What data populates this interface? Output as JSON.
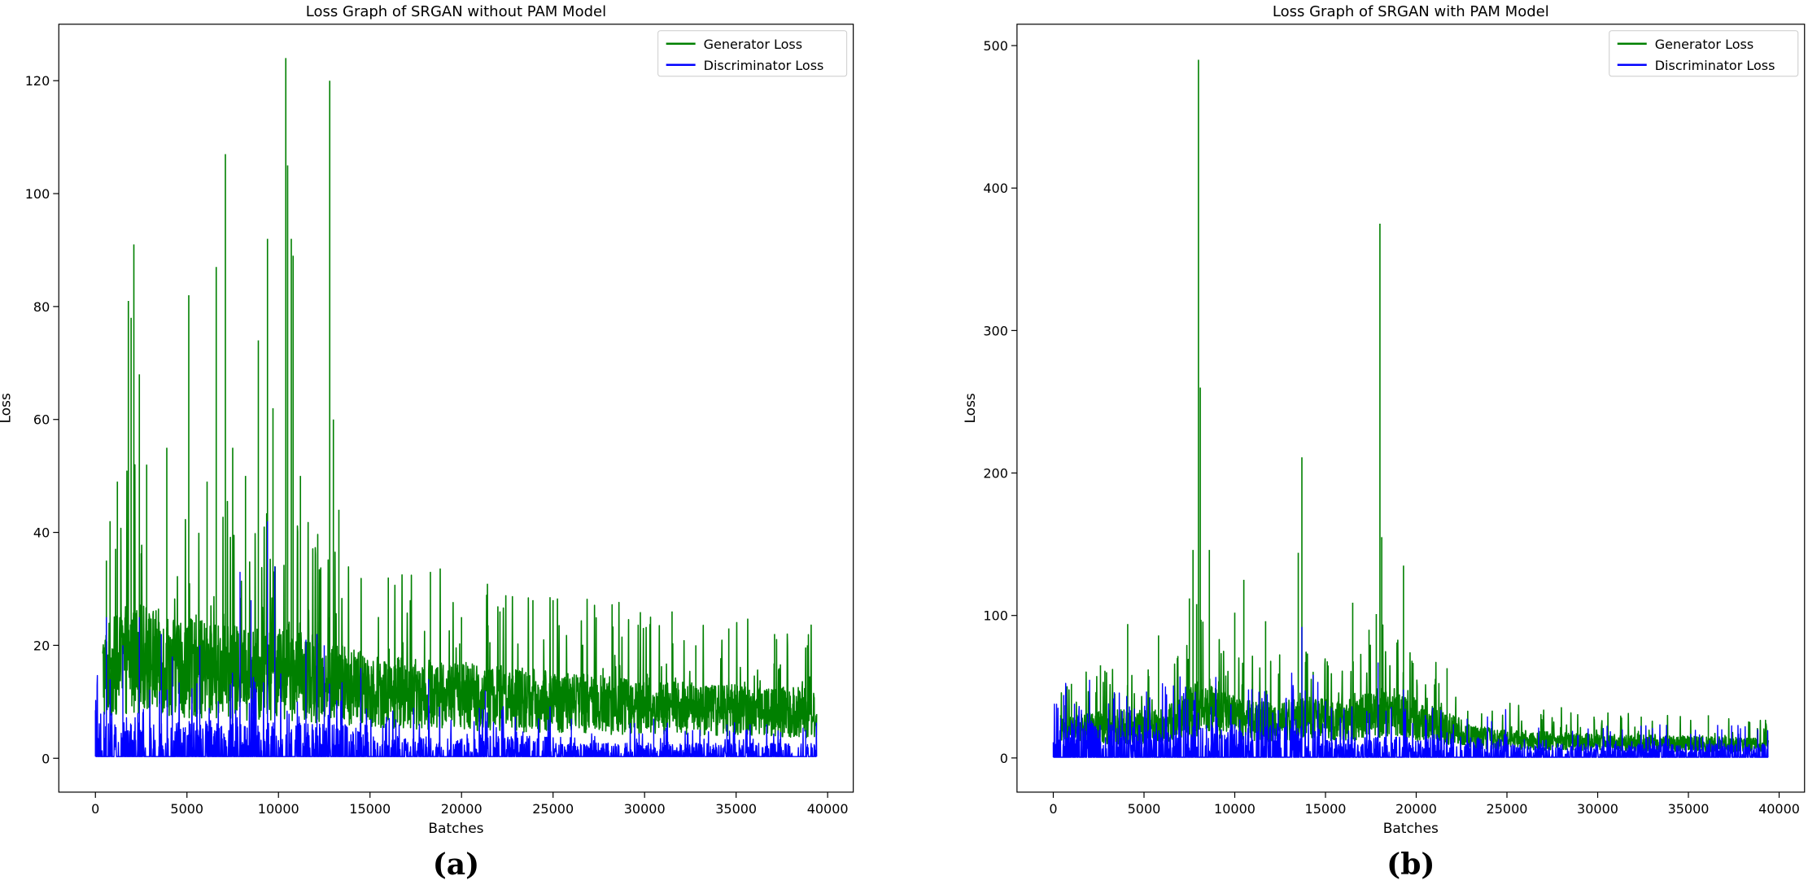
{
  "chart_data": [
    {
      "type": "line",
      "panel_label": "(a)",
      "title": "Loss Graph of SRGAN without PAM Model",
      "xlabel": "Batches",
      "ylabel": "Loss",
      "xlim": [
        -2000,
        41400
      ],
      "ylim": [
        -6,
        130
      ],
      "xticks": [
        0,
        5000,
        10000,
        15000,
        20000,
        25000,
        30000,
        35000,
        40000
      ],
      "yticks": [
        0,
        20,
        40,
        60,
        80,
        100,
        120
      ],
      "legend_position": "top-right",
      "x_end": 39400,
      "series": [
        {
          "name": "Generator Loss",
          "color": "#008000",
          "base_points": [
            [
              400,
              15
            ],
            [
              2000,
              18
            ],
            [
              5000,
              16
            ],
            [
              8000,
              15
            ],
            [
              10000,
              15
            ],
            [
              12000,
              14
            ],
            [
              15000,
              12
            ],
            [
              20000,
              11
            ],
            [
              25000,
              10
            ],
            [
              30000,
              9
            ],
            [
              35000,
              8.5
            ],
            [
              39400,
              8
            ]
          ],
          "spikes": [
            [
              600,
              35
            ],
            [
              800,
              42
            ],
            [
              1200,
              49
            ],
            [
              1800,
              81
            ],
            [
              1950,
              78
            ],
            [
              2100,
              91
            ],
            [
              2400,
              68
            ],
            [
              2800,
              52
            ],
            [
              3900,
              55
            ],
            [
              5100,
              82
            ],
            [
              6100,
              49
            ],
            [
              6600,
              87
            ],
            [
              7100,
              107
            ],
            [
              7500,
              55
            ],
            [
              8200,
              50
            ],
            [
              8900,
              74
            ],
            [
              9400,
              92
            ],
            [
              9700,
              62
            ],
            [
              10400,
              124
            ],
            [
              10500,
              105
            ],
            [
              10700,
              92
            ],
            [
              10800,
              89
            ],
            [
              11200,
              50
            ],
            [
              12800,
              120
            ],
            [
              13000,
              60
            ],
            [
              13300,
              44
            ],
            [
              16000,
              32
            ],
            [
              18300,
              33
            ],
            [
              20000,
              25
            ],
            [
              22100,
              26
            ],
            [
              23900,
              28
            ],
            [
              25000,
              28
            ],
            [
              31500,
              26
            ],
            [
              32800,
              20
            ],
            [
              34600,
              23
            ],
            [
              37100,
              22
            ],
            [
              38900,
              20
            ]
          ]
        },
        {
          "name": "Discriminator Loss",
          "color": "#0000ff",
          "base_points": [
            [
              0,
              0.3
            ],
            [
              39400,
              0.3
            ]
          ],
          "initial_spike": [
            0,
            8.5
          ],
          "spikes": [
            [
              600,
              25
            ],
            [
              1500,
              20
            ],
            [
              2400,
              25
            ],
            [
              3600,
              22
            ],
            [
              4200,
              18
            ],
            [
              5700,
              20
            ],
            [
              7900,
              33
            ],
            [
              8500,
              28
            ],
            [
              9400,
              42
            ],
            [
              9800,
              34
            ],
            [
              11500,
              21
            ],
            [
              12100,
              22
            ],
            [
              12500,
              20
            ],
            [
              14500,
              16
            ],
            [
              18200,
              14
            ],
            [
              21300,
              12
            ],
            [
              26000,
              7
            ],
            [
              30500,
              7
            ],
            [
              34500,
              6
            ],
            [
              38800,
              5
            ]
          ]
        }
      ]
    },
    {
      "type": "line",
      "panel_label": "(b)",
      "title": "Loss Graph of SRGAN with PAM Model",
      "xlabel": "Batches",
      "ylabel": "Loss",
      "xlim": [
        -2000,
        41400
      ],
      "ylim": [
        -24,
        515
      ],
      "xticks": [
        0,
        5000,
        10000,
        15000,
        20000,
        25000,
        30000,
        35000,
        40000
      ],
      "yticks": [
        0,
        100,
        200,
        300,
        400,
        500
      ],
      "legend_position": "top-right",
      "x_end": 39400,
      "series": [
        {
          "name": "Generator Loss",
          "color": "#008000",
          "base_points": [
            [
              400,
              18
            ],
            [
              3000,
              22
            ],
            [
              6000,
              22
            ],
            [
              8000,
              35
            ],
            [
              10000,
              28
            ],
            [
              12000,
              25
            ],
            [
              14000,
              28
            ],
            [
              16000,
              25
            ],
            [
              18000,
              32
            ],
            [
              20000,
              26
            ],
            [
              22000,
              20
            ],
            [
              23000,
              15
            ],
            [
              25000,
              13
            ],
            [
              30000,
              11
            ],
            [
              35000,
              10
            ],
            [
              39400,
              9
            ]
          ],
          "spikes": [
            [
              600,
              37
            ],
            [
              1000,
              52
            ],
            [
              2600,
              65
            ],
            [
              4100,
              94
            ],
            [
              5800,
              86
            ],
            [
              7500,
              112
            ],
            [
              7700,
              146
            ],
            [
              7900,
              108
            ],
            [
              8000,
              490
            ],
            [
              8100,
              260
            ],
            [
              8600,
              146
            ],
            [
              10000,
              102
            ],
            [
              10500,
              125
            ],
            [
              11700,
              96
            ],
            [
              13500,
              144
            ],
            [
              13700,
              211
            ],
            [
              16500,
              109
            ],
            [
              17400,
              90
            ],
            [
              17800,
              101
            ],
            [
              18000,
              375
            ],
            [
              18100,
              155
            ],
            [
              19300,
              135
            ],
            [
              21700,
              63
            ],
            [
              27000,
              30
            ],
            [
              29800,
              29
            ],
            [
              32400,
              29
            ],
            [
              36100,
              30
            ],
            [
              38800,
              21
            ]
          ]
        },
        {
          "name": "Discriminator Loss",
          "color": "#0000ff",
          "base_points": [
            [
              0,
              0.5
            ],
            [
              39400,
              0.5
            ]
          ],
          "initial_spike": [
            0,
            11
          ],
          "spikes": [
            [
              400,
              28
            ],
            [
              1300,
              22
            ],
            [
              3800,
              33
            ],
            [
              7300,
              27
            ],
            [
              8700,
              36
            ],
            [
              11500,
              42
            ],
            [
              13700,
              92
            ],
            [
              15000,
              40
            ],
            [
              17900,
              67
            ],
            [
              19300,
              48
            ],
            [
              21700,
              18
            ],
            [
              25000,
              15
            ],
            [
              31000,
              12
            ],
            [
              36500,
              10
            ]
          ]
        }
      ]
    }
  ]
}
